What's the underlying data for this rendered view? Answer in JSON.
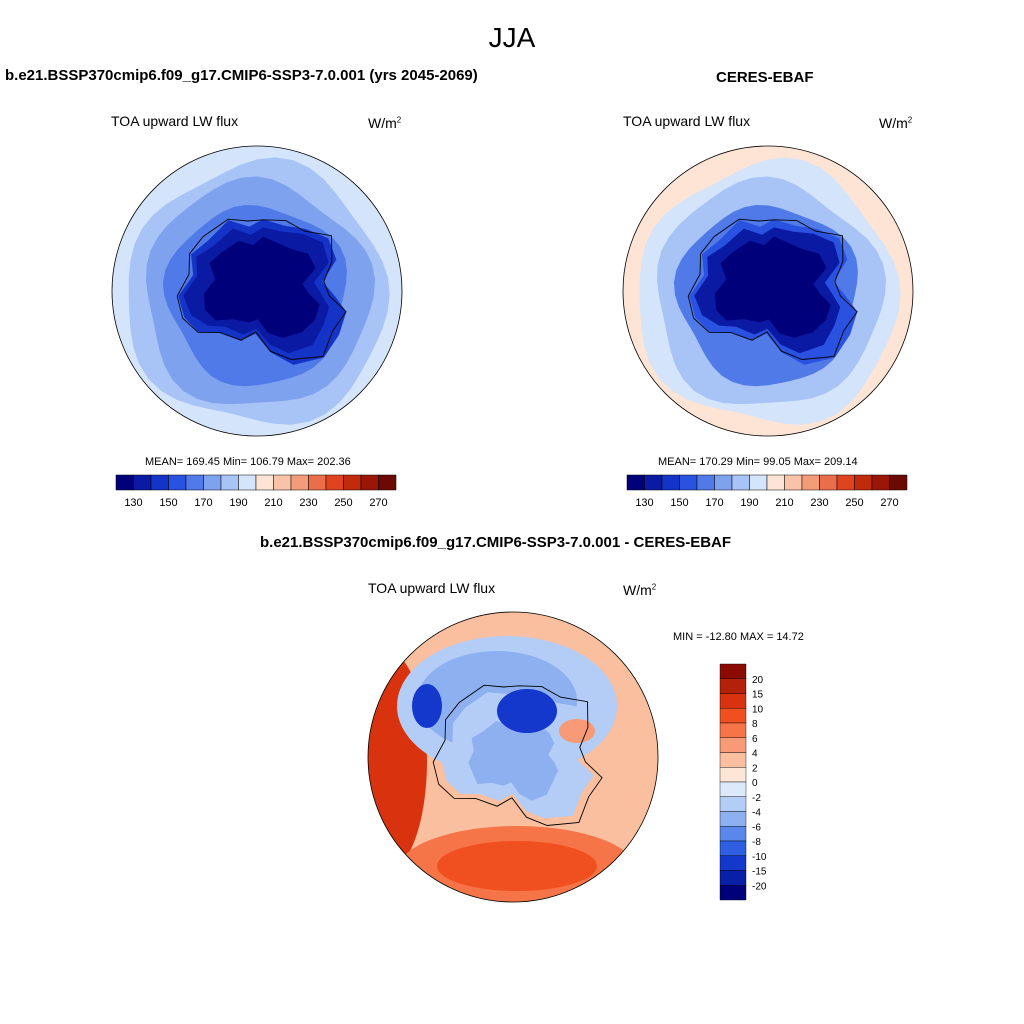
{
  "page": {
    "season": "JJA"
  },
  "panels": [
    {
      "title": "b.e21.BSSP370cmip6.f09_g17.CMIP6-SSP3-7.0.001 (yrs 2045-2069)",
      "variable": "TOA upward LW flux",
      "units_base": "W/m",
      "units_exp": "2",
      "stats": "MEAN= 169.45  Min= 106.79  Max= 202.36"
    },
    {
      "title": "CERES-EBAF",
      "variable": "TOA upward LW flux",
      "units_base": "W/m",
      "units_exp": "2",
      "stats": "MEAN= 170.29  Min=  99.05  Max= 209.14"
    },
    {
      "title": "b.e21.BSSP370cmip6.f09_g17.CMIP6-SSP3-7.0.001 - CERES-EBAF",
      "variable": "TOA upward LW flux",
      "units_base": "W/m",
      "units_exp": "2",
      "stats": "MIN = -12.80 MAX =  14.72"
    }
  ],
  "chart_data": [
    {
      "type": "heatmap",
      "projection": "south-polar stereographic",
      "title": "b.e21.BSSP370cmip6.f09_g17.CMIP6-SSP3-7.0.001 (yrs 2045-2069)",
      "variable": "TOA upward LW flux",
      "units": "W/m2",
      "mean": 169.45,
      "min": 106.79,
      "max": 202.36,
      "levels": [
        130,
        140,
        150,
        160,
        170,
        180,
        190,
        200,
        210,
        220,
        230,
        240,
        250,
        260,
        270
      ],
      "colorbar_ticks": [
        "130",
        "150",
        "170",
        "190",
        "210",
        "230",
        "250",
        "270"
      ],
      "colors": [
        "#00007a",
        "#0a1aa3",
        "#1433c7",
        "#2a52e0",
        "#4f7ae8",
        "#7fa2ef",
        "#a8c3f5",
        "#d4e4fb",
        "#fde4d4",
        "#f8c3a8",
        "#f29c7a",
        "#ec6d4a",
        "#e0441f",
        "#c22a0c",
        "#9b1605",
        "#6b0a02"
      ],
      "rings_W_m2": [
        195,
        185,
        175,
        160,
        145,
        130,
        115
      ]
    },
    {
      "type": "heatmap",
      "projection": "south-polar stereographic",
      "title": "CERES-EBAF",
      "variable": "TOA upward LW flux",
      "units": "W/m2",
      "mean": 170.29,
      "min": 99.05,
      "max": 209.14,
      "levels": [
        130,
        140,
        150,
        160,
        170,
        180,
        190,
        200,
        210,
        220,
        230,
        240,
        250,
        260,
        270
      ],
      "colorbar_ticks": [
        "130",
        "150",
        "170",
        "190",
        "210",
        "230",
        "250",
        "270"
      ],
      "colors": [
        "#00007a",
        "#0a1aa3",
        "#1433c7",
        "#2a52e0",
        "#4f7ae8",
        "#7fa2ef",
        "#a8c3f5",
        "#d4e4fb",
        "#fde4d4",
        "#f8c3a8",
        "#f29c7a",
        "#ec6d4a",
        "#e0441f",
        "#c22a0c",
        "#9b1605",
        "#6b0a02"
      ],
      "rings_W_m2": [
        205,
        190,
        180,
        165,
        150,
        135,
        118,
        100
      ]
    },
    {
      "type": "heatmap",
      "projection": "south-polar stereographic",
      "title": "b.e21.BSSP370cmip6.f09_g17.CMIP6-SSP3-7.0.001 - CERES-EBAF",
      "variable": "TOA upward LW flux",
      "units": "W/m2",
      "min": -12.8,
      "max": 14.72,
      "levels": [
        -20,
        -15,
        -10,
        -8,
        -6,
        -4,
        -2,
        0,
        2,
        4,
        6,
        8,
        10,
        15,
        20
      ],
      "colorbar_ticks": [
        "20",
        "15",
        "10",
        "8",
        "6",
        "4",
        "2",
        "0",
        "-2",
        "-4",
        "-6",
        "-8",
        "-10",
        "-15",
        "-20"
      ],
      "colors": [
        "#8b0a02",
        "#b5200a",
        "#d9320f",
        "#f0501f",
        "#f57448",
        "#f79a75",
        "#f9bf9f",
        "#fde6d6",
        "#dce9fb",
        "#b4cdf6",
        "#8cb0f0",
        "#5a88ea",
        "#2e5ee2",
        "#1437cc",
        "#081fa8",
        "#00007a"
      ]
    }
  ]
}
